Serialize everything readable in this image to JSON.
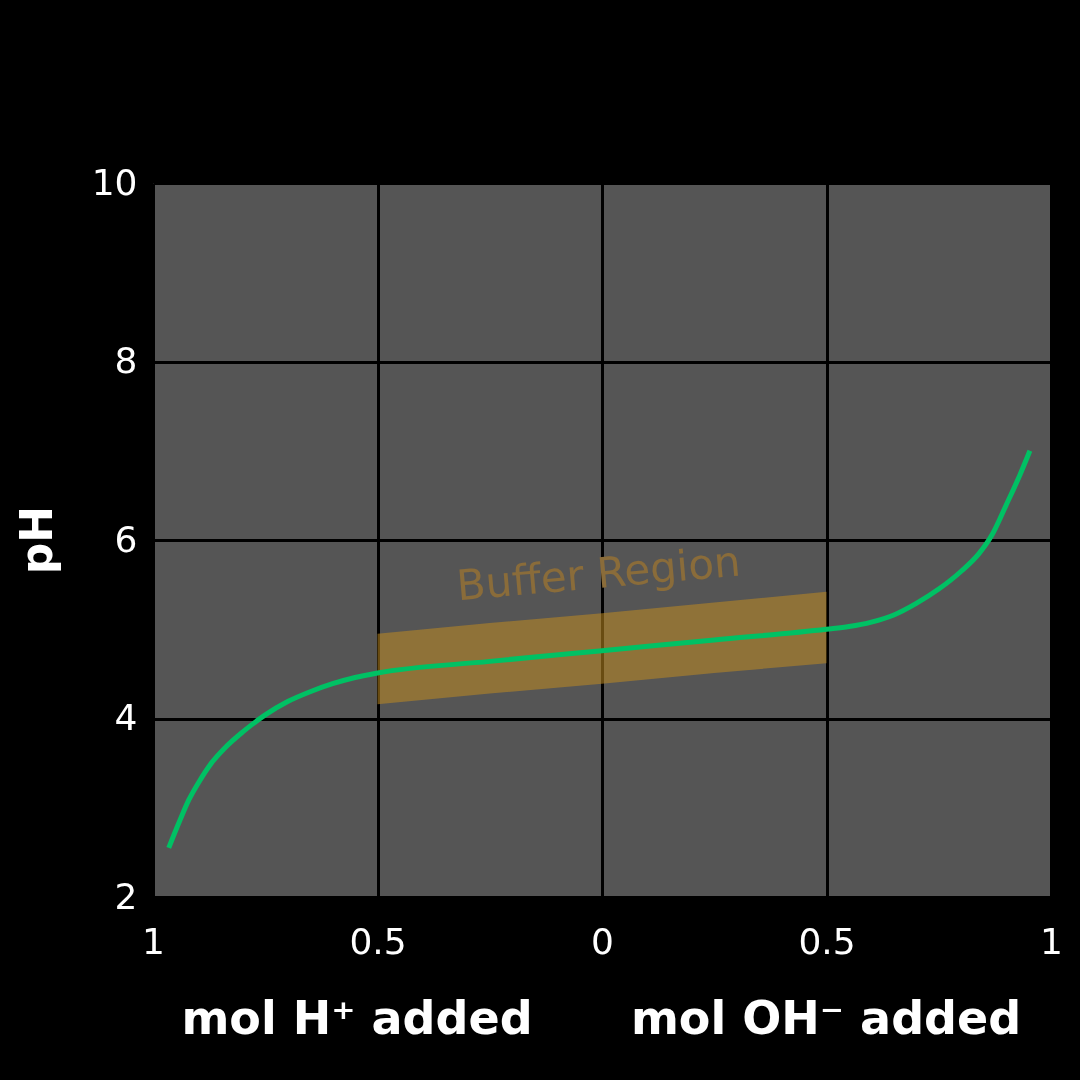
{
  "chart_data": {
    "type": "line",
    "xlabel": "mol H⁺ added",
    "ylabel": "pH",
    "annotations": [
      "mol OH⁻ added",
      "Buffer Region"
    ],
    "x": [
      -0.965,
      -0.94,
      -0.92,
      -0.9,
      -0.87,
      -0.84,
      -0.8,
      -0.75,
      -0.7,
      -0.65,
      -0.6,
      -0.55,
      -0.5,
      -0.25,
      0,
      0.25,
      0.5,
      0.55,
      0.6,
      0.65,
      0.7,
      0.75,
      0.8,
      0.84,
      0.87,
      0.9,
      0.93,
      0.953
    ],
    "series": [
      {
        "color": "#00c164",
        "values": [
          2.55,
          2.86,
          3.09,
          3.27,
          3.5,
          3.67,
          3.85,
          4.04,
          4.19,
          4.3,
          4.39,
          4.46,
          4.51,
          4.64,
          4.76,
          4.88,
          5.0,
          5.03,
          5.08,
          5.16,
          5.29,
          5.45,
          5.65,
          5.85,
          6.07,
          6.39,
          6.72,
          7.0
        ],
        "lower": [
          null,
          null,
          null,
          null,
          null,
          null,
          null,
          null,
          null,
          null,
          null,
          null,
          4.16,
          4.28,
          4.39,
          4.51,
          4.62,
          null,
          null,
          null,
          null,
          null,
          null,
          null,
          null,
          null,
          null,
          null
        ],
        "upper": [
          null,
          null,
          null,
          null,
          null,
          null,
          null,
          null,
          null,
          null,
          null,
          null,
          4.95,
          5.07,
          5.18,
          5.3,
          5.42,
          null,
          null,
          null,
          null,
          null,
          null,
          null,
          null,
          null,
          null,
          null
        ]
      }
    ],
    "xlim": [
      -1,
      1
    ],
    "xticks": [
      {
        "value": -1,
        "label": "1"
      },
      {
        "value": -0.5,
        "label": "0.5"
      },
      0,
      0.5,
      1
    ],
    "ylim": [
      2,
      10
    ],
    "yticks": [
      2,
      4,
      6,
      8,
      10
    ],
    "grid": true
  }
}
